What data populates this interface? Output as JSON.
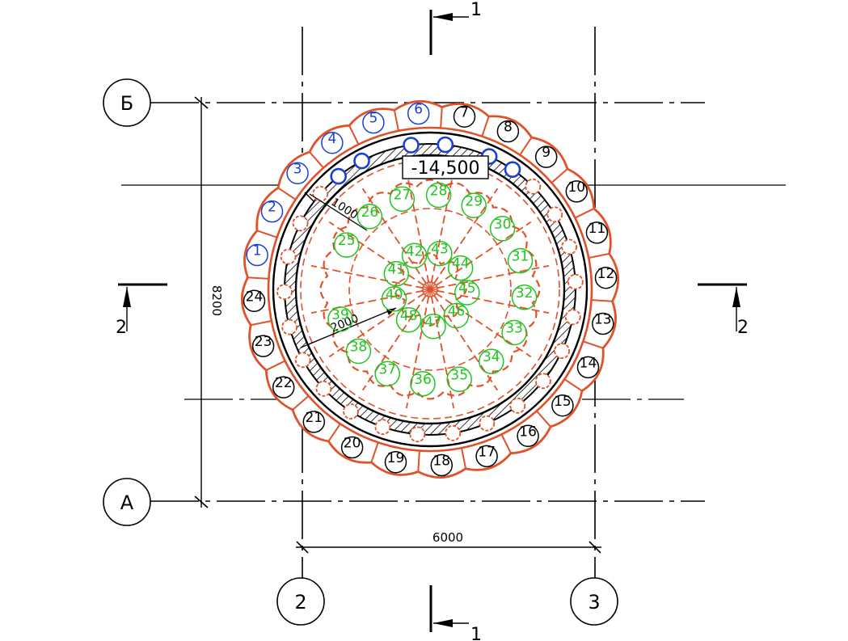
{
  "drawing": {
    "axes": {
      "row_B": "Б",
      "row_A": "А",
      "col_2": "2",
      "col_3": "3"
    },
    "dimensions": {
      "width": "6000",
      "height": "8200",
      "outer_offset": "1000",
      "inner_radius": "2000"
    },
    "elevation": "-14,500",
    "sections": {
      "s1_top": "1",
      "s1_bottom": "1",
      "s2_left": "2",
      "s2_right": "2"
    },
    "colors": {
      "line": "#000000",
      "outer_piles": "#e0522a",
      "blue_markers": "#1a3fd6",
      "green_markers": "#22c422"
    },
    "outer_piles": {
      "blue": [
        "1",
        "2",
        "3",
        "4",
        "5",
        "6"
      ],
      "black": [
        "7",
        "8",
        "9",
        "10",
        "11",
        "12",
        "13",
        "14",
        "15",
        "16",
        "17",
        "18",
        "19",
        "20",
        "21",
        "22",
        "23",
        "24"
      ]
    },
    "inner_piles": [
      "25",
      "26",
      "27",
      "28",
      "29",
      "30",
      "31",
      "32",
      "33",
      "34",
      "35",
      "36",
      "37",
      "38",
      "39",
      "40",
      "41",
      "42",
      "43",
      "44",
      "45",
      "46",
      "47",
      "48"
    ]
  }
}
